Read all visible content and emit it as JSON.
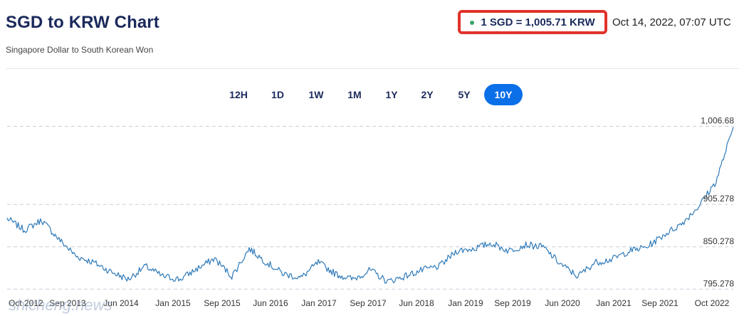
{
  "header": {
    "title": "SGD to KRW Chart",
    "subtitle": "Singapore Dollar to South Korean Won",
    "rate": "1 SGD = 1,005.71 KRW",
    "timestamp": "Oct 14, 2022, 07:07 UTC",
    "highlight_color": "#e0322b",
    "status_dot_color": "#3aa66b"
  },
  "ranges": [
    "12H",
    "1D",
    "1W",
    "1M",
    "1Y",
    "2Y",
    "5Y",
    "10Y"
  ],
  "active_range": "10Y",
  "accent_color": "#0b6fe8",
  "watermark": "shicheng.news",
  "chart_data": {
    "type": "line",
    "series": [
      {
        "color": "#2f7ab8",
        "x": [
          "Oct 2012",
          "Jan 2013",
          "Apr 2013",
          "Jul 2013",
          "Sep 2013",
          "Jan 2014",
          "Apr 2014",
          "Jul 2014",
          "Oct 2014",
          "Jan 2015",
          "Apr 2015",
          "Jul 2015",
          "Sep 2015",
          "Jan 2016",
          "Mar 2016",
          "Jun 2016",
          "Sep 2016",
          "Jan 2017",
          "Apr 2017",
          "Jun 2017",
          "Sep 2017",
          "Dec 2017",
          "Mar 2018",
          "Jun 2018",
          "Sep 2018",
          "Jan 2019",
          "Apr 2019",
          "Jun 2019",
          "Sep 2019",
          "Dec 2019",
          "Mar 2020",
          "Jun 2020",
          "Sep 2020",
          "Nov 2020",
          "Jan 2021",
          "Apr 2021",
          "Jul 2021",
          "Sep 2021",
          "Dec 2021",
          "Mar 2022",
          "Jun 2022",
          "Aug 2022",
          "Oct 2022"
        ],
        "y": [
          887,
          872,
          885,
          860,
          838,
          830,
          818,
          808,
          825,
          812,
          808,
          822,
          835,
          812,
          848,
          830,
          815,
          810,
          830,
          815,
          808,
          820,
          805,
          812,
          820,
          825,
          845,
          848,
          855,
          845,
          853,
          850,
          828,
          812,
          830,
          834,
          845,
          850,
          866,
          880,
          903,
          935,
          1005.71
        ]
      }
    ],
    "ylim": [
      790,
      1009
    ],
    "y_ticks": [
      795.278,
      850.278,
      905.278,
      1006.68
    ],
    "y_tick_labels": [
      "795.278",
      "850.278",
      "905.278",
      "1,006.68"
    ],
    "x_tick_labels": [
      "Oct 2012",
      "Sep 2013",
      "Jun 2014",
      "Jan 2015",
      "Sep 2015",
      "Jun 2016",
      "Jan 2017",
      "Sep 2017",
      "Jun 2018",
      "Jan 2019",
      "Sep 2019",
      "Jun 2020",
      "Jan 2021",
      "Sep 2021",
      "Oct 2022"
    ],
    "grid": true
  }
}
